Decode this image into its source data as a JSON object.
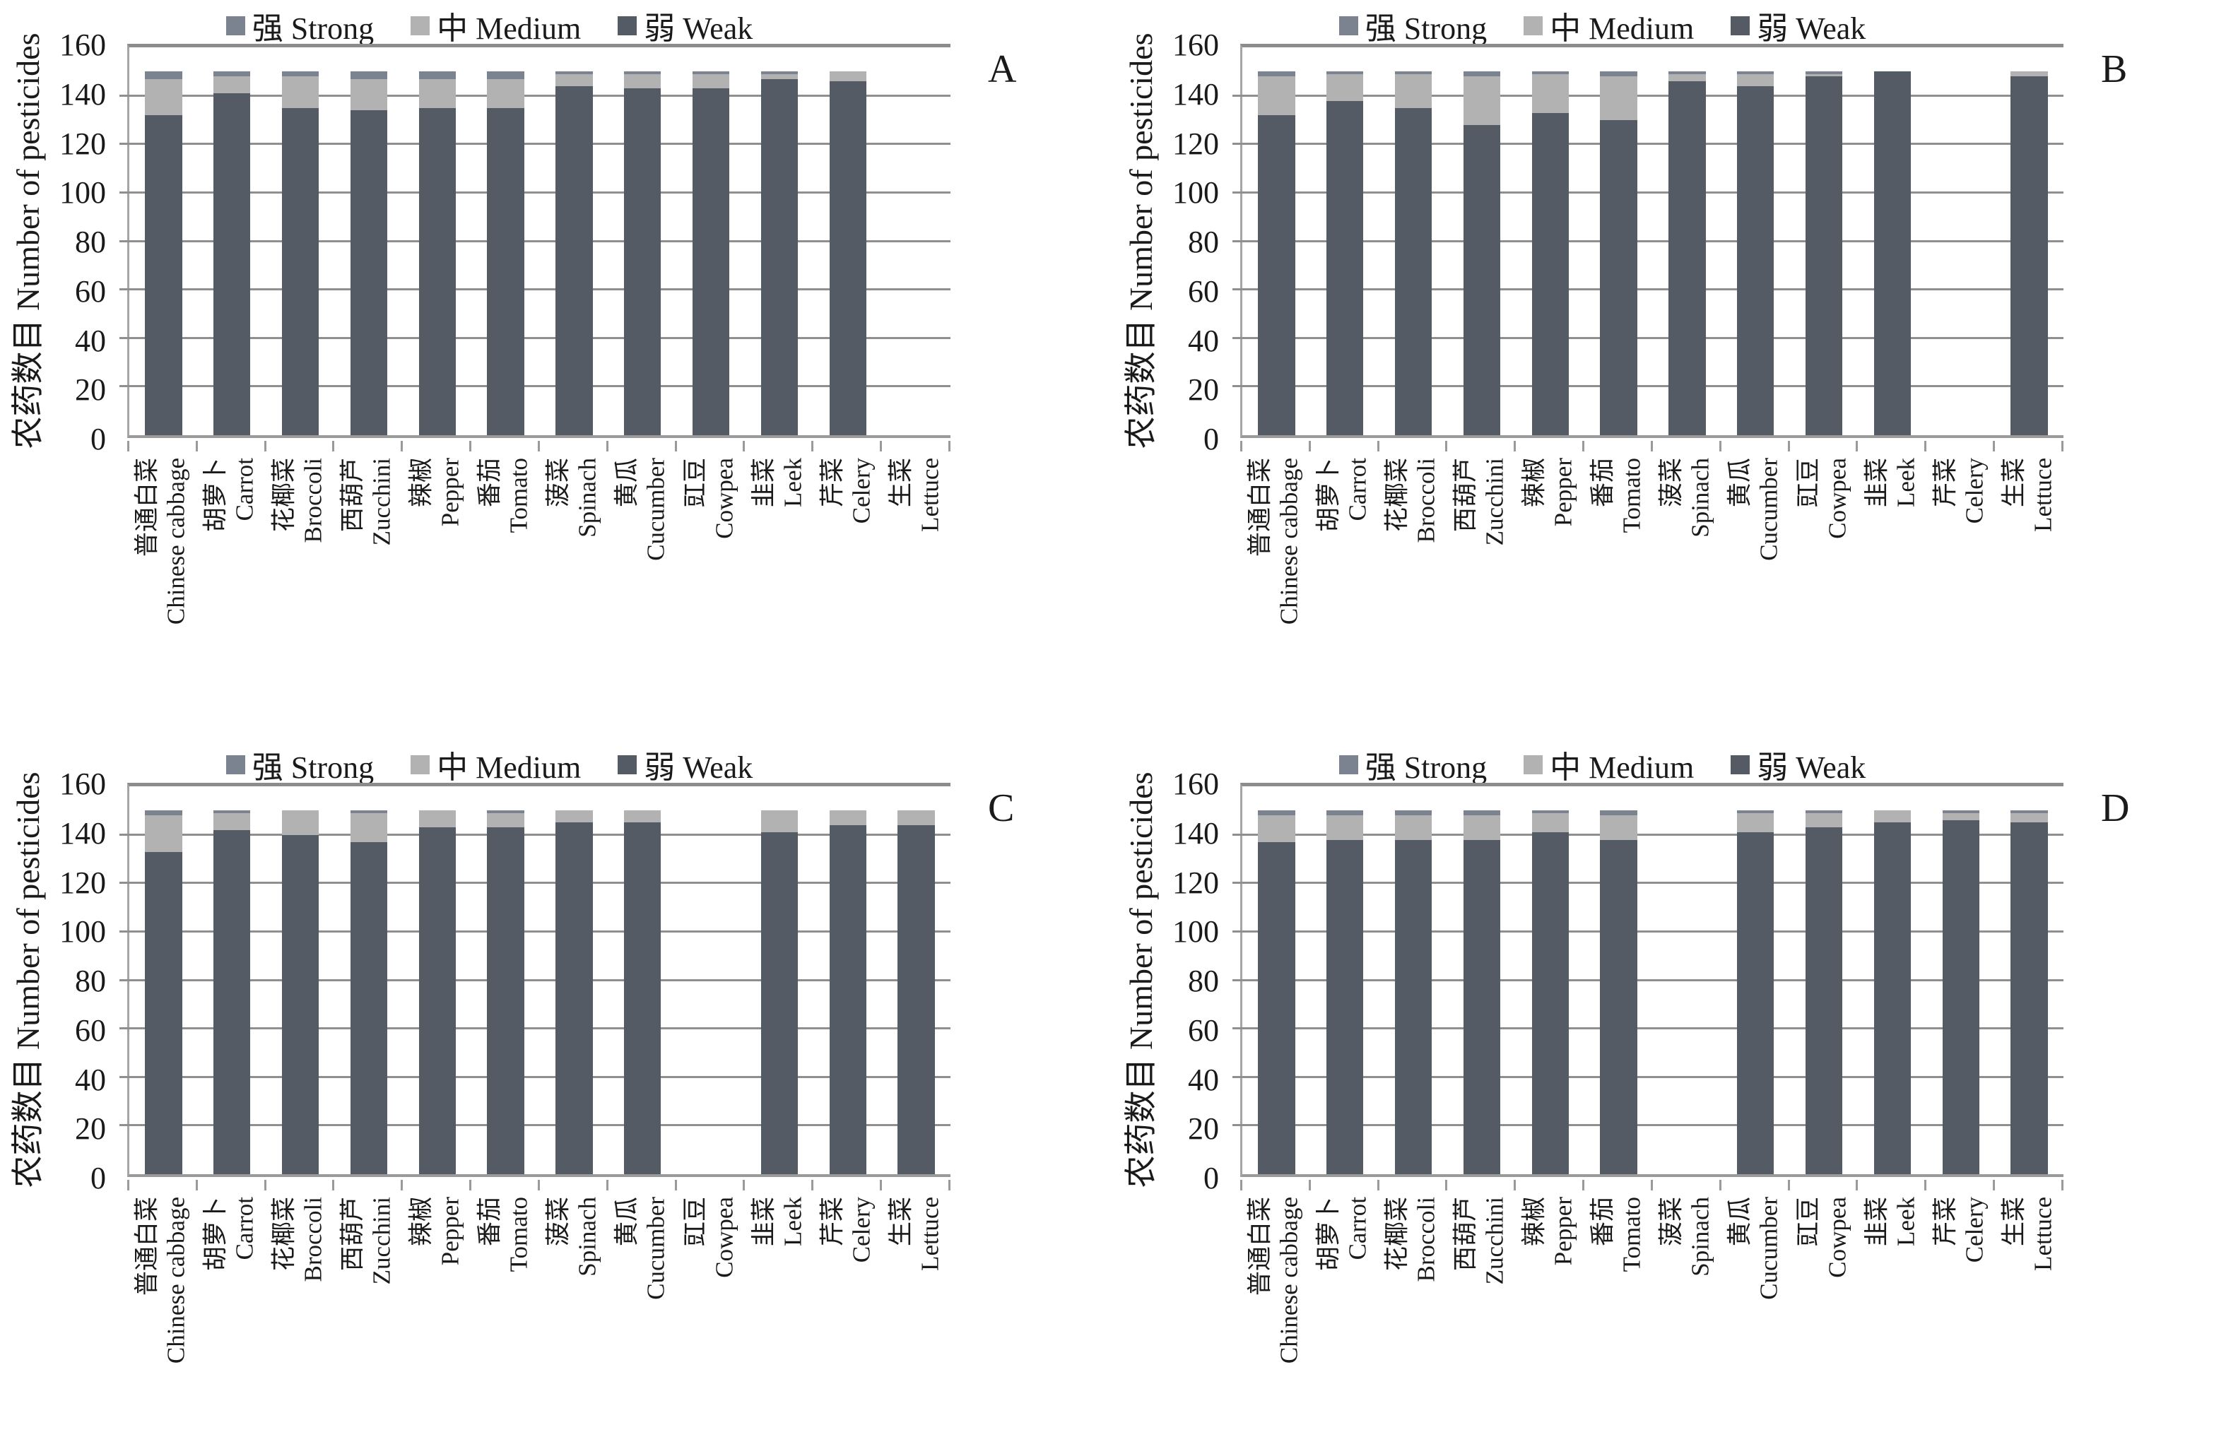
{
  "figure": {
    "description_letters": [
      "A",
      "B",
      "C",
      "D"
    ],
    "ylabel": "农药数目 Number of pesticides",
    "legend_labels": [
      "强 Strong",
      "中 Medium",
      "弱 Weak"
    ],
    "colors": {
      "strong": "#7b8290",
      "medium": "#b2b2b2",
      "weak": "#555b64",
      "gridline": "#8f8f8f"
    }
  },
  "chart_data": {
    "type": "bar",
    "stacked": true,
    "grid": true,
    "legend_position": "top",
    "ylabel": "农药数目 Number of pesticides",
    "ylim": [
      0,
      160
    ],
    "yticks": [
      0,
      20,
      40,
      60,
      80,
      100,
      120,
      140,
      160
    ],
    "legend": [
      {
        "label": "强 Strong",
        "color": "#7b8290"
      },
      {
        "label": "中 Medium",
        "color": "#b2b2b2"
      },
      {
        "label": "弱 Weak",
        "color": "#555b64"
      }
    ],
    "categories": [
      {
        "zh": "普通白菜",
        "en": "Chinese cabbage"
      },
      {
        "zh": "胡萝卜",
        "en": "Carrot"
      },
      {
        "zh": "花椰菜",
        "en": "Broccoli"
      },
      {
        "zh": "西葫芦",
        "en": "Zucchini"
      },
      {
        "zh": "辣椒",
        "en": "Pepper"
      },
      {
        "zh": "番茄",
        "en": "Tomato"
      },
      {
        "zh": "菠菜",
        "en": "Spinach"
      },
      {
        "zh": "黄瓜",
        "en": "Cucumber"
      },
      {
        "zh": "豇豆",
        "en": "Cowpea"
      },
      {
        "zh": "韭菜",
        "en": "Leek"
      },
      {
        "zh": "芹菜",
        "en": "Celery"
      },
      {
        "zh": "生菜",
        "en": "Lettuce"
      }
    ],
    "panels": [
      {
        "letter": "A",
        "series": [
          {
            "name": "弱 Weak",
            "color": "#555b64",
            "values": [
              132,
              141,
              135,
              134,
              135,
              135,
              144,
              143,
              143,
              147,
              146,
              0
            ]
          },
          {
            "name": "中 Medium",
            "color": "#b2b2b2",
            "values": [
              15,
              7,
              13,
              13,
              12,
              12,
              5,
              6,
              6,
              2,
              4,
              0
            ]
          },
          {
            "name": "强 Strong",
            "color": "#7b8290",
            "values": [
              3,
              2,
              2,
              3,
              3,
              3,
              1,
              1,
              1,
              1,
              0,
              0
            ]
          }
        ]
      },
      {
        "letter": "B",
        "series": [
          {
            "name": "弱 Weak",
            "color": "#555b64",
            "values": [
              132,
              138,
              135,
              128,
              133,
              130,
              146,
              144,
              148,
              150,
              0,
              148
            ]
          },
          {
            "name": "中 Medium",
            "color": "#b2b2b2",
            "values": [
              16,
              11,
              14,
              20,
              16,
              18,
              3,
              5,
              1,
              0,
              0,
              2
            ]
          },
          {
            "name": "强 Strong",
            "color": "#7b8290",
            "values": [
              2,
              1,
              1,
              2,
              1,
              2,
              1,
              1,
              1,
              0,
              0,
              0
            ]
          }
        ]
      },
      {
        "letter": "C",
        "series": [
          {
            "name": "弱 Weak",
            "color": "#555b64",
            "values": [
              133,
              142,
              140,
              137,
              143,
              143,
              145,
              145,
              0,
              141,
              144,
              144
            ]
          },
          {
            "name": "中 Medium",
            "color": "#b2b2b2",
            "values": [
              15,
              7,
              10,
              12,
              7,
              6,
              5,
              5,
              0,
              9,
              6,
              6
            ]
          },
          {
            "name": "强 Strong",
            "color": "#7b8290",
            "values": [
              2,
              1,
              0,
              1,
              0,
              1,
              0,
              0,
              0,
              0,
              0,
              0
            ]
          }
        ]
      },
      {
        "letter": "D",
        "series": [
          {
            "name": "弱 Weak",
            "color": "#555b64",
            "values": [
              137,
              138,
              138,
              138,
              141,
              138,
              0,
              141,
              143,
              145,
              146,
              145
            ]
          },
          {
            "name": "中 Medium",
            "color": "#b2b2b2",
            "values": [
              11,
              10,
              10,
              10,
              8,
              10,
              0,
              8,
              6,
              5,
              3,
              4
            ]
          },
          {
            "name": "强 Strong",
            "color": "#7b8290",
            "values": [
              2,
              2,
              2,
              2,
              1,
              2,
              0,
              1,
              1,
              0,
              1,
              1
            ]
          }
        ]
      }
    ]
  }
}
